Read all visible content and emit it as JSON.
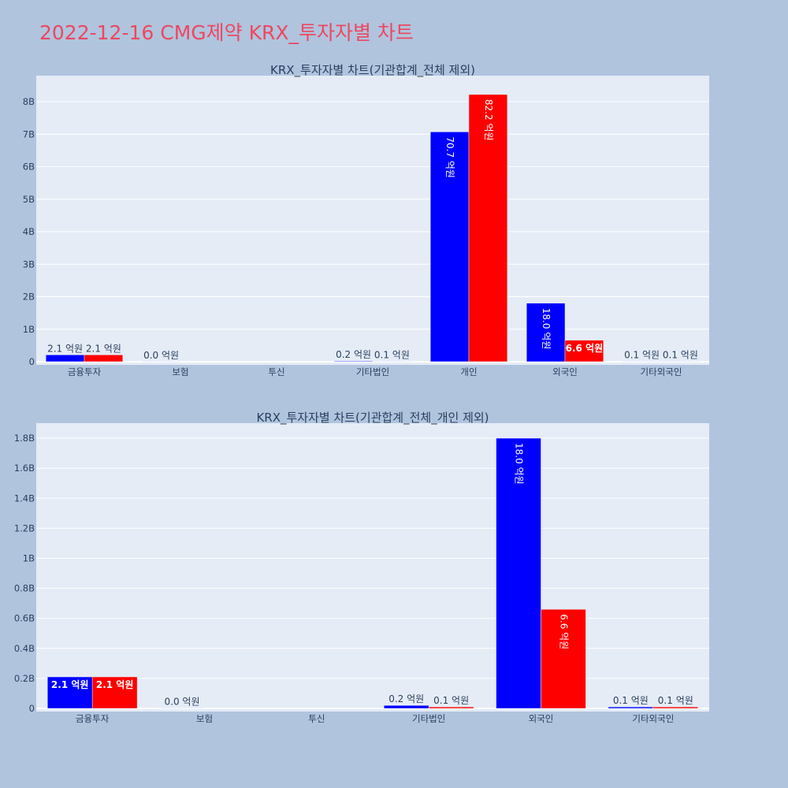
{
  "page_title": "2022-12-16 CMG제약 KRX_투자자별 차트",
  "chart_data": [
    {
      "type": "bar",
      "title": "KRX_투자자별 차트(기관합계_전체 제외)",
      "categories": [
        "금융투자",
        "보험",
        "투신",
        "기타법인",
        "개인",
        "외국인",
        "기타외국인"
      ],
      "series": [
        {
          "color": "#0000ff",
          "values": [
            0.21,
            0.002,
            0,
            0.02,
            7.07,
            1.8,
            0.01
          ],
          "labels": [
            "2.1 억원",
            "0.0 억원",
            "",
            "0.2 억원",
            "70.7 억원",
            "18.0 억원",
            "0.1 억원"
          ]
        },
        {
          "color": "#ff0000",
          "values": [
            0.21,
            0,
            0,
            0.01,
            8.22,
            0.66,
            0.01
          ],
          "labels": [
            "2.1 억원",
            "",
            "",
            "0.1 억원",
            "82.2 억원",
            "6.6 억원",
            "0.1 억원"
          ]
        }
      ],
      "ylim": [
        0,
        8.8
      ],
      "ytick_values": [
        0,
        1,
        2,
        3,
        4,
        5,
        6,
        7,
        8
      ],
      "ytick_labels": [
        "0",
        "1B",
        "2B",
        "3B",
        "4B",
        "5B",
        "6B",
        "7B",
        "8B"
      ],
      "xlabel": "",
      "ylabel": "",
      "grid": true
    },
    {
      "type": "bar",
      "title": "KRX_투자자별 차트(기관합계_전체_개인 제외)",
      "categories": [
        "금융투자",
        "보험",
        "투신",
        "기타법인",
        "외국인",
        "기타외국인"
      ],
      "series": [
        {
          "color": "#0000ff",
          "values": [
            0.21,
            0.002,
            0,
            0.02,
            1.8,
            0.01
          ],
          "labels": [
            "2.1 억원",
            "0.0 억원",
            "",
            "0.2 억원",
            "18.0 억원",
            "0.1 억원"
          ]
        },
        {
          "color": "#ff0000",
          "values": [
            0.21,
            0,
            0,
            0.01,
            0.66,
            0.01
          ],
          "labels": [
            "2.1 억원",
            "",
            "",
            "0.1 억원",
            "6.6 억원",
            "0.1 억원"
          ]
        }
      ],
      "ylim": [
        0,
        1.9
      ],
      "ytick_values": [
        0,
        0.2,
        0.4,
        0.6,
        0.8,
        1.0,
        1.2,
        1.4,
        1.6,
        1.8
      ],
      "ytick_labels": [
        "0",
        "0.2B",
        "0.4B",
        "0.6B",
        "0.8B",
        "1B",
        "1.2B",
        "1.4B",
        "1.6B",
        "1.8B"
      ],
      "xlabel": "",
      "ylabel": "",
      "grid": true
    }
  ]
}
